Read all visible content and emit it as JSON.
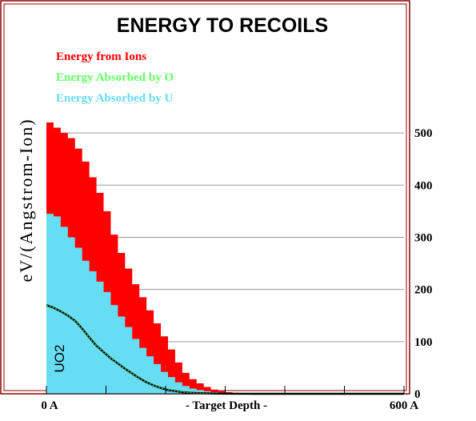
{
  "chart_data": {
    "type": "area",
    "title": "ENERGY TO RECOILS",
    "xlabel": "- Target Depth -",
    "ylabel": "eV/(Angstrom-Ion)",
    "material_label": "UO2",
    "x_tick_labels": [
      "0 A",
      "600 A"
    ],
    "xlim": [
      0,
      600
    ],
    "ylim": [
      0,
      540
    ],
    "y_ticks": [
      0,
      100,
      200,
      300,
      400,
      500
    ],
    "grid": true,
    "legend_position": "top-left",
    "x": [
      0,
      12,
      24,
      36,
      48,
      60,
      72,
      84,
      96,
      108,
      120,
      132,
      144,
      156,
      168,
      180,
      192,
      204,
      216,
      228,
      240,
      252,
      264,
      276,
      288,
      300,
      312,
      324,
      336,
      348,
      360,
      372,
      384,
      396,
      408,
      420,
      432,
      444,
      456,
      468,
      480,
      492,
      504,
      516,
      528,
      540,
      552,
      564,
      576,
      588,
      600
    ],
    "series": [
      {
        "name": "Energy from Ions",
        "color": "#ff0000",
        "values": [
          520,
          510,
          500,
          490,
          470,
          445,
          415,
          385,
          350,
          305,
          270,
          240,
          210,
          185,
          160,
          135,
          110,
          85,
          60,
          40,
          28,
          20,
          13,
          8,
          5,
          3,
          2,
          1,
          1,
          0.5,
          0.3,
          0.2,
          0.1,
          0.1,
          0.05,
          0,
          0,
          0,
          0,
          0,
          0,
          0,
          0,
          0,
          0,
          0,
          0,
          0,
          0,
          0,
          0
        ]
      },
      {
        "name": "Energy Absorbed by  O",
        "color": "#66ff66",
        "values": [
          170,
          165,
          158,
          150,
          140,
          125,
          108,
          92,
          80,
          68,
          58,
          48,
          39,
          30,
          22,
          16,
          11,
          7,
          5,
          3,
          2,
          1.5,
          1,
          0.6,
          0.3,
          0.2,
          0.1,
          0.1,
          0.05,
          0,
          0,
          0,
          0,
          0,
          0,
          0,
          0,
          0,
          0,
          0,
          0,
          0,
          0,
          0,
          0,
          0,
          0,
          0,
          0,
          0,
          0
        ]
      },
      {
        "name": "Energy Absorbed by  U",
        "color": "#66ddf2",
        "values": [
          345,
          340,
          320,
          300,
          280,
          255,
          235,
          215,
          195,
          170,
          148,
          128,
          105,
          88,
          72,
          57,
          42,
          32,
          22,
          15,
          10,
          7,
          5,
          3,
          2,
          1.5,
          1,
          0.5,
          0.3,
          0.2,
          0.1,
          0.1,
          0,
          0,
          0,
          0,
          0,
          0,
          0,
          0,
          0,
          0,
          0,
          0,
          0,
          0,
          0,
          0,
          0,
          0,
          0
        ]
      }
    ]
  }
}
